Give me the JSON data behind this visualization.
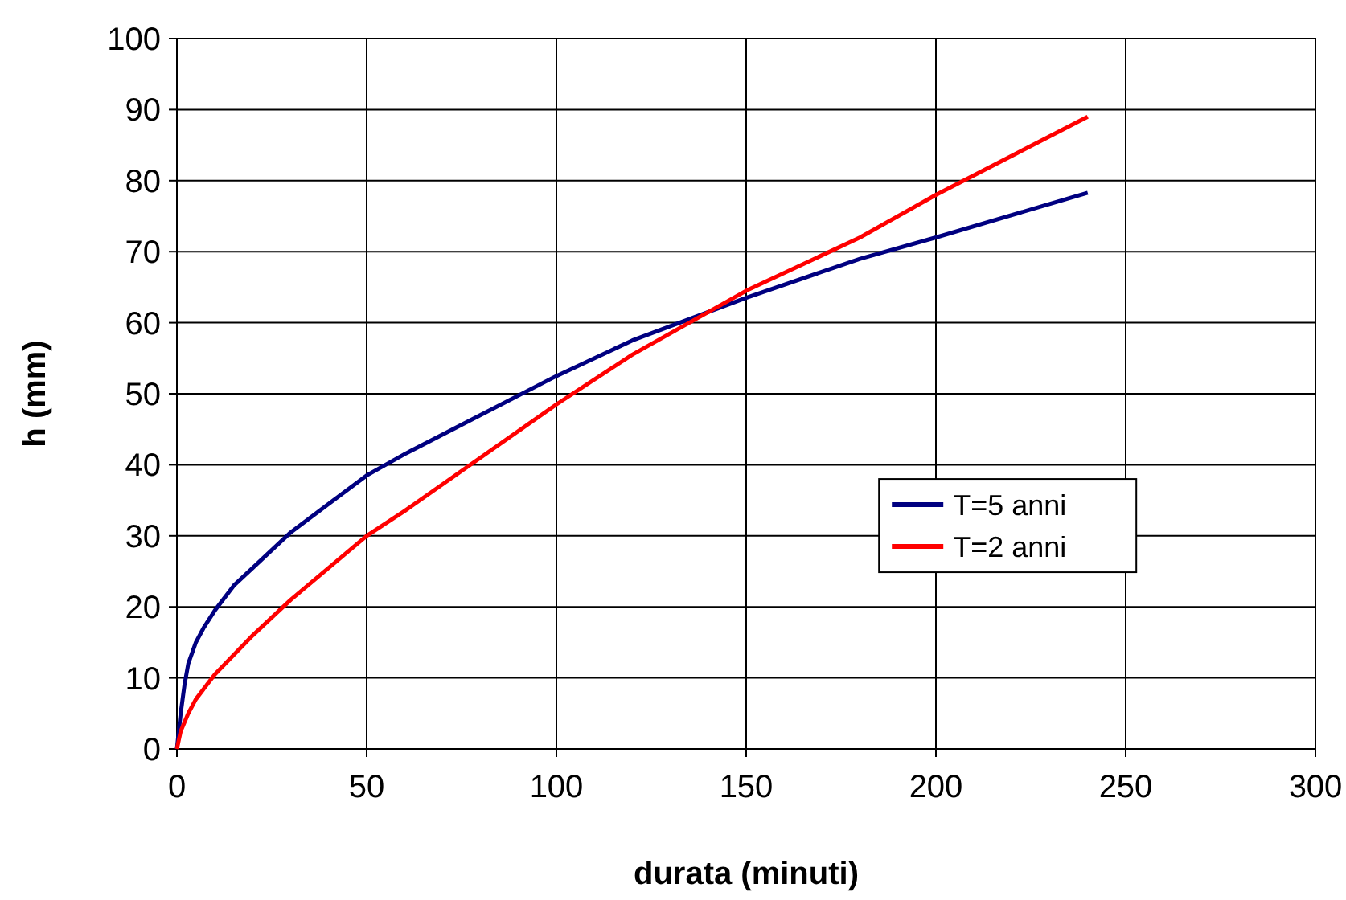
{
  "chart_data": {
    "type": "line",
    "xlabel": "durata (minuti)",
    "ylabel": "h (mm)",
    "xlim": [
      0,
      300
    ],
    "xticks": [
      0,
      50,
      100,
      150,
      200,
      250,
      300
    ],
    "ylim": [
      0,
      100
    ],
    "yticks": [
      0,
      10,
      20,
      30,
      40,
      50,
      60,
      70,
      80,
      90,
      100
    ],
    "grid": true,
    "legend": "right",
    "marker": "none",
    "line_style": "solid",
    "series": [
      {
        "name": "T=5 anni",
        "color": "#000080",
        "x": [
          0,
          1,
          2,
          3,
          5,
          7,
          10,
          15,
          20,
          30,
          40,
          50,
          60,
          80,
          100,
          120,
          150,
          180,
          200,
          240
        ],
        "values": [
          0,
          5,
          9,
          12,
          15,
          17,
          19.5,
          23,
          25.5,
          30.5,
          34.5,
          38.5,
          41.5,
          47,
          52.5,
          57.5,
          63.5,
          69,
          72,
          78.3
        ]
      },
      {
        "name": "T=2 anni",
        "color": "#ff0000",
        "x": [
          0,
          1,
          3,
          5,
          10,
          20,
          30,
          40,
          50,
          60,
          80,
          100,
          120,
          150,
          180,
          200,
          240
        ],
        "values": [
          0,
          2.5,
          5,
          7,
          10.5,
          16,
          21,
          25.5,
          30,
          33.5,
          41,
          48.5,
          55.5,
          64.5,
          72,
          78,
          89
        ]
      }
    ]
  }
}
